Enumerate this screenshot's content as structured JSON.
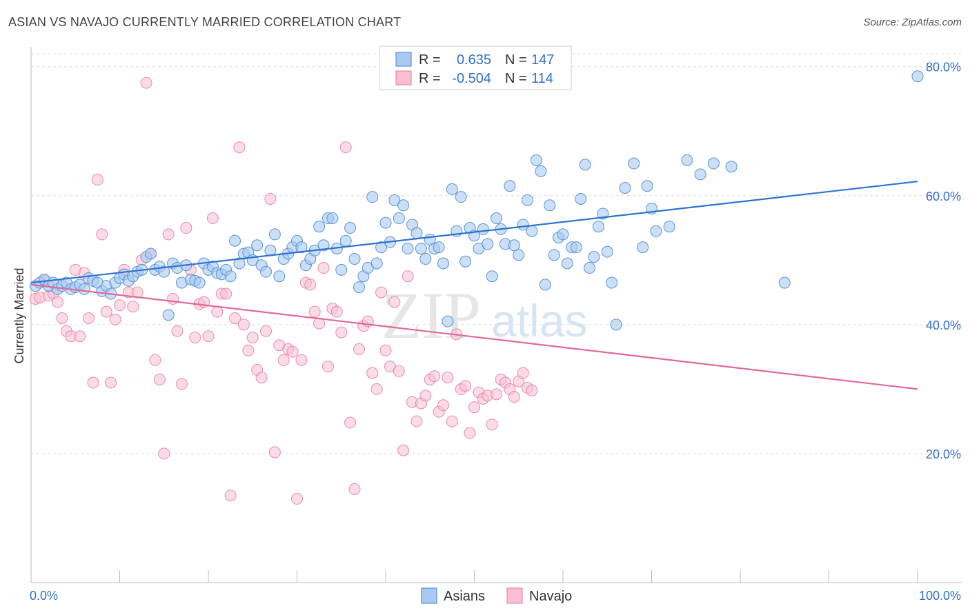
{
  "title": "ASIAN VS NAVAJO CURRENTLY MARRIED CORRELATION CHART",
  "source": "Source: ZipAtlas.com",
  "watermark": {
    "zip": "ZIP",
    "atlas": "atlas"
  },
  "colors": {
    "asian_fill": "#a9c9f0",
    "asian_stroke": "#5b93d6",
    "asian_line": "#2f72d0",
    "navajo_fill": "#f7bfd0",
    "navajo_stroke": "#e88aaa",
    "navajo_line": "#e0689a",
    "value_text": "#2f6fce",
    "grid": "#dcdcdc",
    "axis": "#bbbbbb"
  },
  "legend": {
    "rows": [
      {
        "r_label": "R =",
        "r_value": "0.635",
        "n_label": "N =",
        "n_value": "147"
      },
      {
        "r_label": "R =",
        "r_value": "-0.504",
        "n_label": "N =",
        "n_value": "114"
      }
    ]
  },
  "chart_data": {
    "type": "scatter",
    "title": "ASIAN VS NAVAJO CURRENTLY MARRIED CORRELATION CHART",
    "xlabel": "",
    "ylabel": "Currently Married",
    "xlim": [
      0,
      100
    ],
    "ylim": [
      0,
      82
    ],
    "x_tick_labels": [
      "0.0%",
      "100.0%"
    ],
    "y_ticks": [
      20,
      40,
      60,
      80
    ],
    "y_tick_labels": [
      "20.0%",
      "40.0%",
      "60.0%",
      "80.0%"
    ],
    "grid": "horizontal dashed",
    "legend_position": "top-center",
    "series": [
      {
        "name": "Asians",
        "r": 0.635,
        "n": 147,
        "trend": {
          "x": [
            0,
            100
          ],
          "y": [
            46.5,
            62.2
          ]
        },
        "points": [
          [
            0.5,
            46
          ],
          [
            1,
            46.5
          ],
          [
            1.5,
            47
          ],
          [
            2,
            46
          ],
          [
            2.5,
            46.5
          ],
          [
            3,
            45.5
          ],
          [
            3.5,
            46
          ],
          [
            4,
            46.5
          ],
          [
            4.5,
            45.5
          ],
          [
            5,
            45.8
          ],
          [
            5.5,
            46.2
          ],
          [
            6,
            45.5
          ],
          [
            6.5,
            47.2
          ],
          [
            7,
            46.8
          ],
          [
            7.5,
            46.5
          ],
          [
            8,
            45.2
          ],
          [
            8.5,
            46
          ],
          [
            9,
            44.8
          ],
          [
            9.5,
            46.5
          ],
          [
            10,
            47.2
          ],
          [
            10.5,
            47.8
          ],
          [
            11,
            46.8
          ],
          [
            11.5,
            47.5
          ],
          [
            12,
            48.2
          ],
          [
            12.5,
            48.5
          ],
          [
            13,
            50.5
          ],
          [
            13.5,
            51
          ],
          [
            14,
            48.5
          ],
          [
            14.5,
            49
          ],
          [
            15,
            48.2
          ],
          [
            15.5,
            41.5
          ],
          [
            16,
            49.5
          ],
          [
            16.5,
            48.8
          ],
          [
            17,
            46.5
          ],
          [
            17.5,
            49.2
          ],
          [
            18,
            47
          ],
          [
            18.5,
            46.8
          ],
          [
            19,
            46.5
          ],
          [
            19.5,
            49.5
          ],
          [
            20,
            48.5
          ],
          [
            20.5,
            49
          ],
          [
            21,
            48
          ],
          [
            21.5,
            47.8
          ],
          [
            22,
            48.5
          ],
          [
            22.5,
            47.5
          ],
          [
            23,
            53
          ],
          [
            23.5,
            49.5
          ],
          [
            24,
            51
          ],
          [
            24.5,
            51.2
          ],
          [
            25,
            50
          ],
          [
            25.5,
            52.3
          ],
          [
            26,
            49.2
          ],
          [
            26.5,
            48.2
          ],
          [
            27,
            51.5
          ],
          [
            27.5,
            54
          ],
          [
            28,
            47.5
          ],
          [
            28.5,
            50.2
          ],
          [
            29,
            51
          ],
          [
            29.5,
            52
          ],
          [
            30,
            53
          ],
          [
            30.5,
            52
          ],
          [
            31,
            49.2
          ],
          [
            31.5,
            50.2
          ],
          [
            32,
            51.5
          ],
          [
            32.5,
            55.2
          ],
          [
            33,
            52.3
          ],
          [
            33.5,
            56.5
          ],
          [
            34,
            56.5
          ],
          [
            34.5,
            51.8
          ],
          [
            35,
            48.5
          ],
          [
            35.5,
            53
          ],
          [
            36,
            55
          ],
          [
            36.5,
            50.2
          ],
          [
            37,
            45.8
          ],
          [
            37.5,
            47.5
          ],
          [
            38,
            48.8
          ],
          [
            38.5,
            59.8
          ],
          [
            39,
            49.5
          ],
          [
            39.5,
            52
          ],
          [
            40,
            55.8
          ],
          [
            40.5,
            52.8
          ],
          [
            41,
            59.3
          ],
          [
            41.5,
            56.5
          ],
          [
            42,
            58.5
          ],
          [
            42.5,
            51.8
          ],
          [
            43,
            55.5
          ],
          [
            43.5,
            54.2
          ],
          [
            44,
            51.8
          ],
          [
            44.5,
            50.2
          ],
          [
            45,
            53.2
          ],
          [
            45.5,
            51.8
          ],
          [
            46,
            52
          ],
          [
            46.5,
            49.5
          ],
          [
            47,
            40.5
          ],
          [
            47.5,
            61
          ],
          [
            48,
            54.5
          ],
          [
            48.5,
            59.8
          ],
          [
            49,
            49.8
          ],
          [
            49.5,
            55
          ],
          [
            50,
            53.8
          ],
          [
            50.5,
            51.8
          ],
          [
            51,
            54.8
          ],
          [
            51.5,
            52.5
          ],
          [
            52,
            47.5
          ],
          [
            52.5,
            56.5
          ],
          [
            53,
            54.8
          ],
          [
            53.5,
            52.5
          ],
          [
            54,
            61.5
          ],
          [
            54.5,
            52.3
          ],
          [
            55,
            50.8
          ],
          [
            55.5,
            55.5
          ],
          [
            56,
            59.3
          ],
          [
            56.5,
            54.5
          ],
          [
            57,
            65.5
          ],
          [
            57.5,
            63.8
          ],
          [
            58,
            46.2
          ],
          [
            58.5,
            58.5
          ],
          [
            59,
            50.8
          ],
          [
            59.5,
            53.5
          ],
          [
            60,
            54
          ],
          [
            60.5,
            49.5
          ],
          [
            61,
            52
          ],
          [
            61.5,
            52
          ],
          [
            62,
            59.5
          ],
          [
            62.5,
            64.8
          ],
          [
            63,
            48.8
          ],
          [
            63.5,
            50.5
          ],
          [
            64,
            55.2
          ],
          [
            64.5,
            57.2
          ],
          [
            65,
            51.3
          ],
          [
            65.5,
            46.5
          ],
          [
            66,
            40
          ],
          [
            67,
            61.2
          ],
          [
            68,
            65
          ],
          [
            69,
            52
          ],
          [
            69.5,
            61.5
          ],
          [
            70,
            58
          ],
          [
            70.5,
            54.5
          ],
          [
            72,
            55.2
          ],
          [
            74,
            65.5
          ],
          [
            75.5,
            63.3
          ],
          [
            77,
            65
          ],
          [
            79,
            64.5
          ],
          [
            85,
            46.5
          ],
          [
            100,
            78.5
          ]
        ]
      },
      {
        "name": "Navajo",
        "r": -0.504,
        "n": 114,
        "trend": {
          "x": [
            0,
            100
          ],
          "y": [
            46.2,
            30
          ]
        },
        "points": [
          [
            0.5,
            44
          ],
          [
            1,
            44.2
          ],
          [
            1.5,
            46.8
          ],
          [
            2,
            44.5
          ],
          [
            2.5,
            44.8
          ],
          [
            3,
            43.5
          ],
          [
            3.5,
            41
          ],
          [
            4,
            39
          ],
          [
            4.5,
            38.2
          ],
          [
            5,
            48.5
          ],
          [
            5.5,
            38.2
          ],
          [
            6,
            48
          ],
          [
            6.5,
            41
          ],
          [
            7,
            31
          ],
          [
            7.5,
            62.5
          ],
          [
            8,
            54
          ],
          [
            8.5,
            42
          ],
          [
            9,
            31
          ],
          [
            9.5,
            40.8
          ],
          [
            10,
            43
          ],
          [
            10.5,
            48.5
          ],
          [
            11,
            45
          ],
          [
            11.5,
            42.8
          ],
          [
            12,
            45
          ],
          [
            12.5,
            50
          ],
          [
            13,
            77.5
          ],
          [
            13.5,
            51
          ],
          [
            14,
            34.5
          ],
          [
            14.5,
            31.5
          ],
          [
            15,
            20
          ],
          [
            15.5,
            54
          ],
          [
            16,
            44
          ],
          [
            16.5,
            39
          ],
          [
            17,
            30.8
          ],
          [
            17.5,
            55
          ],
          [
            18,
            48.5
          ],
          [
            18.5,
            38
          ],
          [
            19,
            43.2
          ],
          [
            19.5,
            43.5
          ],
          [
            20,
            38.2
          ],
          [
            20.5,
            56.5
          ],
          [
            21,
            42
          ],
          [
            21.5,
            44.8
          ],
          [
            22,
            44.8
          ],
          [
            22.5,
            13.5
          ],
          [
            23,
            41
          ],
          [
            23.5,
            67.5
          ],
          [
            24,
            40
          ],
          [
            24.5,
            36
          ],
          [
            25,
            38
          ],
          [
            25.5,
            33
          ],
          [
            26,
            31.8
          ],
          [
            26.5,
            39
          ],
          [
            27,
            59.5
          ],
          [
            27.5,
            20.2
          ],
          [
            28,
            36.8
          ],
          [
            28.5,
            34.5
          ],
          [
            29,
            36.2
          ],
          [
            29.5,
            35.8
          ],
          [
            30,
            13
          ],
          [
            30.5,
            34.5
          ],
          [
            31,
            46.5
          ],
          [
            31.5,
            46.2
          ],
          [
            32,
            42
          ],
          [
            32.5,
            40.2
          ],
          [
            33,
            48.8
          ],
          [
            33.5,
            33.5
          ],
          [
            34,
            42.5
          ],
          [
            34.5,
            42
          ],
          [
            35,
            38.8
          ],
          [
            35.5,
            67.5
          ],
          [
            36,
            24.8
          ],
          [
            36.5,
            14.5
          ],
          [
            37,
            36.2
          ],
          [
            37.5,
            39.8
          ],
          [
            38,
            40.5
          ],
          [
            38.5,
            32.5
          ],
          [
            39,
            30
          ],
          [
            39.5,
            45
          ],
          [
            40,
            36
          ],
          [
            40.5,
            33.5
          ],
          [
            41,
            43.5
          ],
          [
            41.5,
            32.8
          ],
          [
            42,
            20.5
          ],
          [
            42.5,
            47.5
          ],
          [
            43,
            28
          ],
          [
            43.5,
            25
          ],
          [
            44,
            27.8
          ],
          [
            44.5,
            29
          ],
          [
            45,
            31.5
          ],
          [
            45.5,
            32
          ],
          [
            46,
            26.5
          ],
          [
            46.5,
            27.5
          ],
          [
            47,
            31.8
          ],
          [
            47.5,
            25
          ],
          [
            48,
            38.5
          ],
          [
            48.5,
            30
          ],
          [
            49,
            30.5
          ],
          [
            49.5,
            23.2
          ],
          [
            50,
            27.2
          ],
          [
            50.5,
            29.5
          ],
          [
            51,
            28.5
          ],
          [
            51.5,
            29
          ],
          [
            52,
            24.5
          ],
          [
            52.5,
            29.2
          ],
          [
            53,
            31.5
          ],
          [
            53.5,
            31
          ],
          [
            54,
            30
          ],
          [
            54.5,
            28.8
          ],
          [
            55,
            31.2
          ],
          [
            55.5,
            32.5
          ],
          [
            56,
            30.2
          ],
          [
            56.5,
            29.8
          ]
        ]
      }
    ]
  },
  "bottom_legend": [
    {
      "label": "Asians"
    },
    {
      "label": "Navajo"
    }
  ]
}
